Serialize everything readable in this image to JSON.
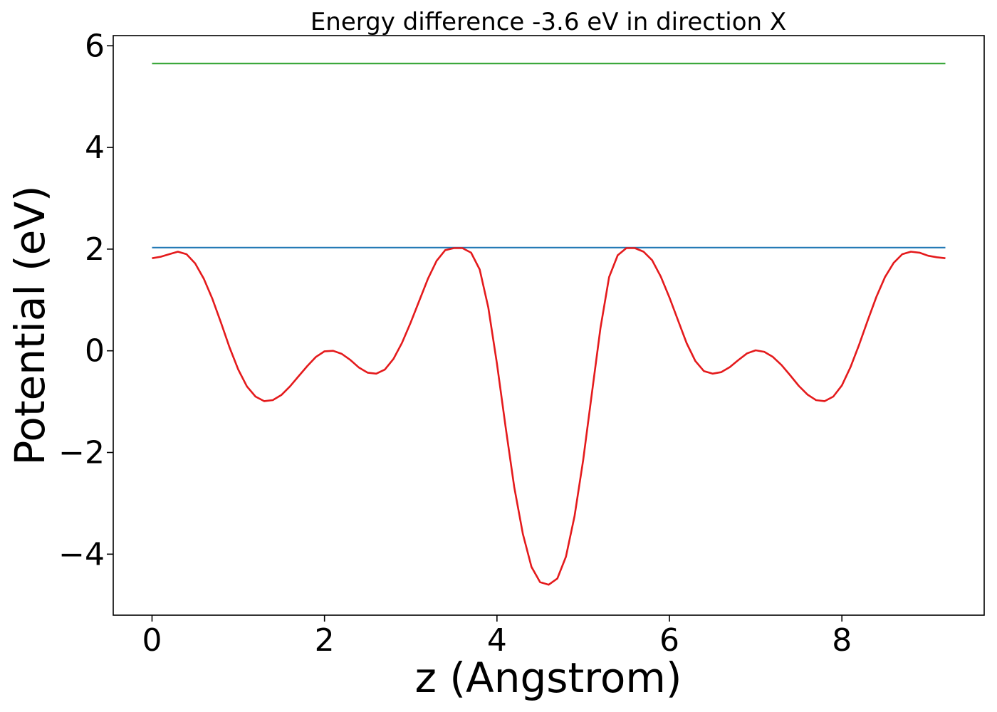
{
  "chart_data": {
    "type": "line",
    "title": "Energy difference -3.6 eV in direction X",
    "xlabel": "z (Angstrom)",
    "ylabel": "Potential (eV)",
    "xlim": [
      -0.45,
      9.65
    ],
    "ylim": [
      -5.2,
      6.2
    ],
    "xticks": [
      0,
      2,
      4,
      6,
      8
    ],
    "xtick_labels": [
      "0",
      "2",
      "4",
      "6",
      "8"
    ],
    "yticks": [
      -4,
      -2,
      0,
      2,
      4,
      6
    ],
    "ytick_labels": [
      "−4",
      "−2",
      "0",
      "2",
      "4",
      "6"
    ],
    "grid": false,
    "series": [
      {
        "color": "#2ca02c",
        "x": [
          0,
          9.2
        ],
        "y": [
          5.65,
          5.65
        ]
      },
      {
        "color": "#1f77b4",
        "x": [
          0,
          9.2
        ],
        "y": [
          2.03,
          2.03
        ]
      },
      {
        "color": "#e41a1c",
        "x": [
          0,
          0.1,
          0.2,
          0.3,
          0.4,
          0.5,
          0.6,
          0.7,
          0.8,
          0.9,
          1.0,
          1.1,
          1.2,
          1.3,
          1.4,
          1.5,
          1.6,
          1.7,
          1.8,
          1.9,
          2.0,
          2.1,
          2.2,
          2.3,
          2.4,
          2.5,
          2.6,
          2.7,
          2.8,
          2.9,
          3.0,
          3.1,
          3.2,
          3.3,
          3.4,
          3.5,
          3.6,
          3.7,
          3.8,
          3.9,
          4.0,
          4.1,
          4.2,
          4.3,
          4.4,
          4.5,
          4.6,
          4.7,
          4.8,
          4.9,
          5.0,
          5.1,
          5.2,
          5.3,
          5.4,
          5.5,
          5.6,
          5.7,
          5.8,
          5.9,
          6.0,
          6.1,
          6.2,
          6.3,
          6.4,
          6.5,
          6.6,
          6.7,
          6.8,
          6.9,
          7.0,
          7.1,
          7.2,
          7.3,
          7.4,
          7.5,
          7.6,
          7.7,
          7.8,
          7.9,
          8.0,
          8.1,
          8.2,
          8.3,
          8.4,
          8.5,
          8.6,
          8.7,
          8.8,
          8.9,
          9.0,
          9.1,
          9.2
        ],
        "y": [
          1.82,
          1.85,
          1.9,
          1.95,
          1.9,
          1.72,
          1.42,
          1.02,
          0.55,
          0.06,
          -0.37,
          -0.7,
          -0.9,
          -0.99,
          -0.97,
          -0.87,
          -0.7,
          -0.5,
          -0.3,
          -0.12,
          -0.01,
          0.0,
          -0.06,
          -0.18,
          -0.33,
          -0.43,
          -0.45,
          -0.37,
          -0.16,
          0.16,
          0.56,
          0.99,
          1.42,
          1.77,
          1.98,
          2.02,
          2.02,
          1.93,
          1.6,
          0.85,
          -0.25,
          -1.5,
          -2.68,
          -3.6,
          -4.25,
          -4.55,
          -4.6,
          -4.48,
          -4.05,
          -3.25,
          -2.15,
          -0.85,
          0.45,
          1.45,
          1.88,
          2.02,
          2.02,
          1.95,
          1.78,
          1.46,
          1.05,
          0.6,
          0.15,
          -0.2,
          -0.4,
          -0.45,
          -0.42,
          -0.32,
          -0.18,
          -0.05,
          0.01,
          -0.02,
          -0.12,
          -0.28,
          -0.48,
          -0.69,
          -0.86,
          -0.97,
          -0.99,
          -0.9,
          -0.68,
          -0.32,
          0.12,
          0.6,
          1.06,
          1.45,
          1.73,
          1.9,
          1.95,
          1.93,
          1.87,
          1.84,
          1.82
        ]
      }
    ]
  }
}
